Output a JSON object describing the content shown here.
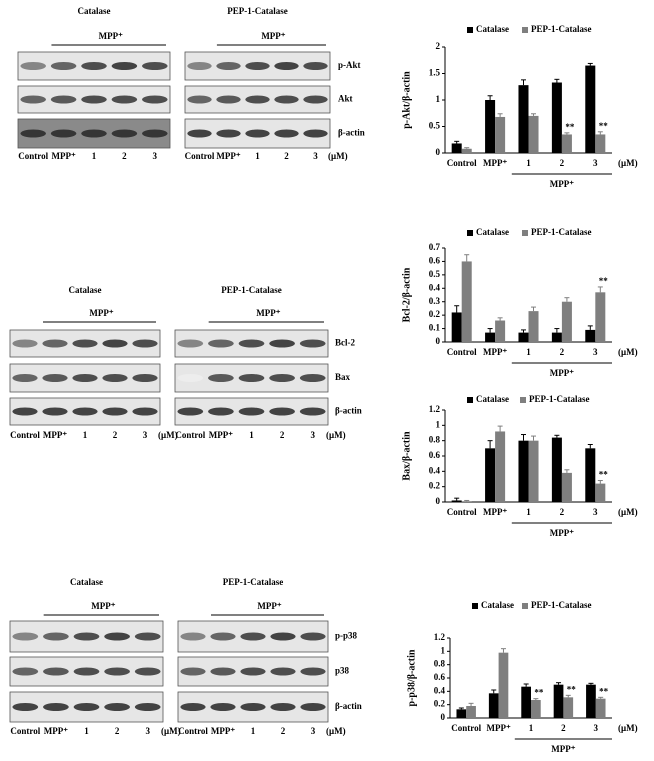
{
  "blots": [
    {
      "panels": [
        {
          "title": "Catalase",
          "treatment": "MPP⁺",
          "lanes": [
            "Control",
            "MPP⁺",
            "1",
            "2",
            "3"
          ]
        },
        {
          "title": "PEP-1-Catalase",
          "treatment": "MPP⁺",
          "lanes": [
            "Control",
            "MPP⁺",
            "1",
            "2",
            "3"
          ],
          "unit": "(μM)"
        }
      ],
      "rows": [
        "p-Akt",
        "Akt",
        "β-actin"
      ]
    },
    {
      "panels": [
        {
          "title": "Catalase",
          "treatment": "MPP⁺",
          "lanes": [
            "Control",
            "MPP⁺",
            "1",
            "2",
            "3"
          ],
          "unit": "(μM)"
        },
        {
          "title": "PEP-1-Catalase",
          "treatment": "MPP⁺",
          "lanes": [
            "Control",
            "MPP⁺",
            "1",
            "2",
            "3"
          ],
          "unit": "(μM)"
        }
      ],
      "rows": [
        "Bcl-2",
        "Bax",
        "β-actin"
      ]
    },
    {
      "panels": [
        {
          "title": "Catalase",
          "treatment": "MPP⁺",
          "lanes": [
            "Control",
            "MPP⁺",
            "1",
            "2",
            "3"
          ],
          "unit": "(μM)"
        },
        {
          "title": "PEP-1-Catalase",
          "treatment": "MPP⁺",
          "lanes": [
            "Control",
            "MPP⁺",
            "1",
            "2",
            "3"
          ],
          "unit": "(μM)"
        }
      ],
      "rows": [
        "p-p38",
        "p38",
        "β-actin"
      ]
    }
  ],
  "chart_data": [
    {
      "type": "bar",
      "y_label": "p-Akt/β-actin",
      "categories": [
        "Control",
        "MPP⁺",
        "1",
        "2",
        "3"
      ],
      "x_unit": "(μM)",
      "group_label": "MPP⁺",
      "series": [
        {
          "name": "Catalase",
          "color": "#000000",
          "values": [
            0.18,
            1.0,
            1.28,
            1.33,
            1.65
          ],
          "errors": [
            0.04,
            0.08,
            0.1,
            0.06,
            0.04
          ]
        },
        {
          "name": "PEP-1-Catalase",
          "color": "#7f7f7f",
          "values": [
            0.08,
            0.68,
            0.7,
            0.35,
            0.35
          ],
          "errors": [
            0.02,
            0.06,
            0.04,
            0.03,
            0.05
          ],
          "significance": [
            null,
            null,
            null,
            "**",
            "**"
          ]
        }
      ],
      "ylim": [
        0,
        2
      ],
      "yticks": [
        0,
        0.5,
        1,
        1.5,
        2
      ]
    },
    {
      "type": "bar",
      "y_label": "Bcl-2/β-actin",
      "categories": [
        "Control",
        "MPP⁺",
        "1",
        "2",
        "3"
      ],
      "x_unit": "(μM)",
      "group_label": "MPP⁺",
      "series": [
        {
          "name": "Catalase",
          "color": "#000000",
          "values": [
            0.22,
            0.07,
            0.07,
            0.07,
            0.09
          ],
          "errors": [
            0.05,
            0.03,
            0.02,
            0.03,
            0.03
          ]
        },
        {
          "name": "PEP-1-Catalase",
          "color": "#7f7f7f",
          "values": [
            0.6,
            0.16,
            0.23,
            0.3,
            0.37
          ],
          "errors": [
            0.05,
            0.02,
            0.03,
            0.03,
            0.04
          ],
          "significance": [
            null,
            null,
            null,
            null,
            "**"
          ]
        }
      ],
      "ylim": [
        0,
        0.7
      ],
      "yticks": [
        0,
        0.1,
        0.2,
        0.3,
        0.4,
        0.5,
        0.6,
        0.7
      ]
    },
    {
      "type": "bar",
      "y_label": "Bax/β-actin",
      "categories": [
        "Control",
        "MPP⁺",
        "1",
        "2",
        "3"
      ],
      "x_unit": "(μM)",
      "group_label": "MPP⁺",
      "series": [
        {
          "name": "Catalase",
          "color": "#000000",
          "values": [
            0.02,
            0.7,
            0.8,
            0.84,
            0.7
          ],
          "errors": [
            0.03,
            0.1,
            0.08,
            0.03,
            0.05
          ]
        },
        {
          "name": "PEP-1-Catalase",
          "color": "#7f7f7f",
          "values": [
            0.01,
            0.92,
            0.8,
            0.38,
            0.24
          ],
          "errors": [
            0.01,
            0.07,
            0.06,
            0.04,
            0.04
          ],
          "significance": [
            null,
            null,
            null,
            null,
            "**"
          ]
        }
      ],
      "ylim": [
        0,
        1.2
      ],
      "yticks": [
        0,
        0.2,
        0.4,
        0.6,
        0.8,
        1,
        1.2
      ]
    },
    {
      "type": "bar",
      "y_label": "p-p38/β-actin",
      "categories": [
        "Control",
        "MPP⁺",
        "1",
        "2",
        "3"
      ],
      "x_unit": "(μM)",
      "group_label": "MPP⁺",
      "series": [
        {
          "name": "Catalase",
          "color": "#000000",
          "values": [
            0.13,
            0.37,
            0.47,
            0.5,
            0.5
          ],
          "errors": [
            0.02,
            0.05,
            0.04,
            0.03,
            0.02
          ]
        },
        {
          "name": "PEP-1-Catalase",
          "color": "#7f7f7f",
          "values": [
            0.18,
            0.98,
            0.27,
            0.31,
            0.29
          ],
          "errors": [
            0.04,
            0.06,
            0.02,
            0.03,
            0.02
          ],
          "significance": [
            null,
            null,
            "**",
            "**",
            "**"
          ]
        }
      ],
      "ylim": [
        0,
        1.2
      ],
      "yticks": [
        0,
        0.2,
        0.4,
        0.6,
        0.8,
        1,
        1.2
      ]
    }
  ]
}
